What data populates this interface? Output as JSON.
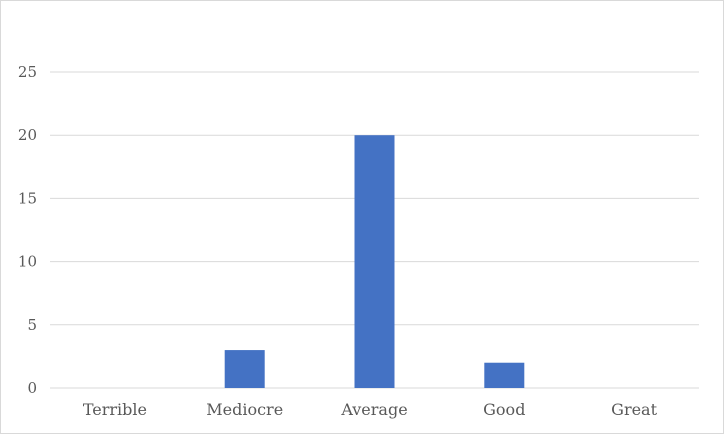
{
  "chart_data": {
    "type": "bar",
    "title": "",
    "xlabel": "",
    "ylabel": "",
    "categories": [
      "Terrible",
      "Mediocre",
      "Average",
      "Good",
      "Great"
    ],
    "values": [
      0,
      3,
      20,
      2,
      0
    ],
    "ylim": [
      0,
      25
    ],
    "yticks": [
      0,
      5,
      10,
      15,
      20,
      25
    ],
    "grid": true,
    "legend": "none",
    "bar_color": "#4472c4",
    "grid_color": "#d9d9d9"
  }
}
